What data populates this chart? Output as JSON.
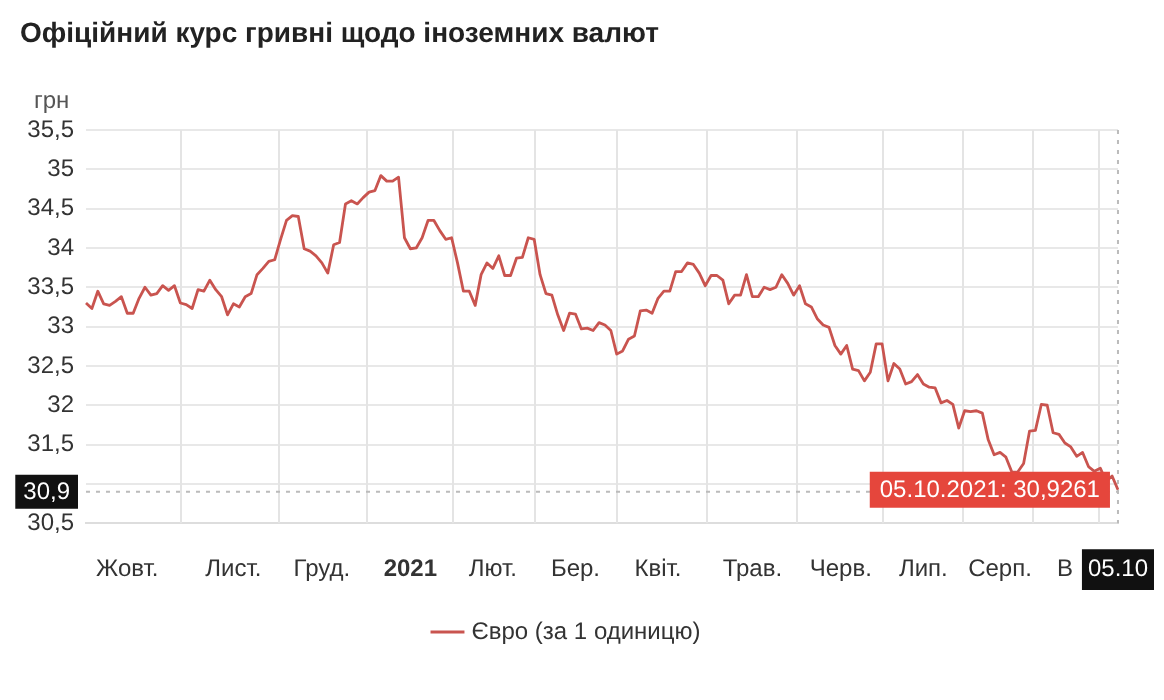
{
  "chart_data": {
    "type": "line",
    "title": "Офіційний курс гривні щодо іноземних валют",
    "ylabel": "грн",
    "categories": [
      null,
      null,
      null,
      null,
      null,
      null,
      null,
      "Жовт.",
      null,
      null,
      null,
      null,
      null,
      null,
      null,
      null,
      null,
      null,
      null,
      null,
      null,
      null,
      null,
      null,
      null,
      "Лист.",
      null,
      null,
      null,
      null,
      null,
      null,
      null,
      null,
      null,
      null,
      null,
      null,
      null,
      null,
      "Груд.",
      null,
      null,
      null,
      null,
      null,
      null,
      null,
      null,
      null,
      null,
      null,
      null,
      null,
      null,
      "2021",
      null,
      null,
      null,
      null,
      null,
      null,
      null,
      null,
      null,
      null,
      null,
      null,
      null,
      "Лют.",
      null,
      null,
      null,
      null,
      null,
      null,
      null,
      null,
      null,
      null,
      null,
      null,
      null,
      "Бер.",
      null,
      null,
      null,
      null,
      null,
      null,
      null,
      null,
      null,
      null,
      null,
      null,
      null,
      "Квіт.",
      null,
      null,
      null,
      null,
      null,
      null,
      null,
      null,
      null,
      null,
      null,
      null,
      null,
      null,
      null,
      "Трав.",
      null,
      null,
      null,
      null,
      null,
      null,
      null,
      null,
      null,
      null,
      null,
      null,
      null,
      null,
      "Черв.",
      null,
      null,
      null,
      null,
      null,
      null,
      null,
      null,
      null,
      null,
      null,
      null,
      null,
      "Лип.",
      null,
      null,
      null,
      null,
      null,
      null,
      null,
      null,
      null,
      null,
      null,
      null,
      "Серп.",
      null,
      null,
      null,
      null,
      null,
      null,
      null,
      null,
      null,
      null,
      "В",
      null,
      null,
      null,
      null,
      null,
      null,
      null,
      null,
      "05.10"
    ],
    "series": [
      {
        "name": "Євро (за 1 одиницю)",
        "color": "#c9544f",
        "values": [
          33.3,
          33.23,
          33.45,
          33.29,
          33.27,
          33.32,
          33.38,
          33.17,
          33.17,
          33.36,
          33.5,
          33.4,
          33.42,
          33.52,
          33.46,
          33.52,
          33.3,
          33.28,
          33.23,
          33.47,
          33.45,
          33.59,
          33.47,
          33.38,
          33.15,
          33.29,
          33.25,
          33.38,
          33.42,
          33.66,
          33.74,
          33.83,
          33.85,
          34.11,
          34.35,
          34.41,
          34.4,
          33.99,
          33.96,
          33.9,
          33.81,
          33.68,
          34.04,
          34.07,
          34.56,
          34.6,
          34.56,
          34.64,
          34.71,
          34.73,
          34.92,
          34.85,
          34.85,
          34.9,
          34.13,
          33.99,
          34.0,
          34.13,
          34.35,
          34.35,
          34.22,
          34.11,
          34.13,
          33.81,
          33.45,
          33.45,
          33.27,
          33.66,
          33.81,
          33.74,
          33.9,
          33.65,
          33.65,
          33.87,
          33.88,
          34.13,
          34.11,
          33.66,
          33.42,
          33.4,
          33.15,
          32.95,
          33.17,
          33.16,
          32.97,
          32.98,
          32.95,
          33.05,
          33.02,
          32.95,
          32.65,
          32.69,
          32.84,
          32.88,
          33.2,
          33.21,
          33.17,
          33.36,
          33.45,
          33.45,
          33.7,
          33.7,
          33.81,
          33.79,
          33.68,
          33.52,
          33.65,
          33.65,
          33.59,
          33.29,
          33.4,
          33.4,
          33.66,
          33.38,
          33.38,
          33.5,
          33.47,
          33.5,
          33.66,
          33.55,
          33.4,
          33.52,
          33.29,
          33.25,
          33.1,
          33.02,
          32.99,
          32.76,
          32.65,
          32.76,
          32.46,
          32.44,
          32.31,
          32.42,
          32.78,
          32.78,
          32.31,
          32.53,
          32.46,
          32.27,
          32.3,
          32.39,
          32.27,
          32.23,
          32.22,
          32.03,
          32.06,
          32.01,
          31.71,
          31.93,
          31.92,
          31.93,
          31.9,
          31.56,
          31.37,
          31.4,
          31.34,
          31.15,
          31.15,
          31.26,
          31.67,
          31.68,
          32.01,
          32.0,
          31.65,
          31.63,
          31.52,
          31.47,
          31.35,
          31.4,
          31.22,
          31.16,
          31.2,
          31.03,
          31.1,
          30.9261
        ]
      }
    ],
    "ylim": [
      30.5,
      35.5
    ],
    "yticks": [
      {
        "value": 30.5,
        "label": "30,5"
      },
      {
        "value": 31,
        "label": null
      },
      {
        "value": 31.5,
        "label": "31,5"
      },
      32,
      {
        "value": 32.5,
        "label": "32,5"
      },
      33,
      {
        "value": 33.5,
        "label": "33,5"
      },
      34,
      {
        "value": 34.5,
        "label": "34,5"
      },
      35,
      {
        "value": 35.5,
        "label": "35,5"
      }
    ],
    "ref_lines": [
      {
        "axis": "y",
        "value": 30.9,
        "label": "30,9",
        "color": "#bbbbbb",
        "line_style": "dotted"
      },
      {
        "axis": "x",
        "value": "05.10",
        "color": "#bbbbbb",
        "line_style": "dotted"
      }
    ],
    "annotations": [
      {
        "text": "05.10.2021: 30,9261",
        "x": "05.10",
        "y": 30.9261
      }
    ],
    "grid": true,
    "legend": "bottom",
    "marker": "none",
    "line_style": "solid"
  }
}
